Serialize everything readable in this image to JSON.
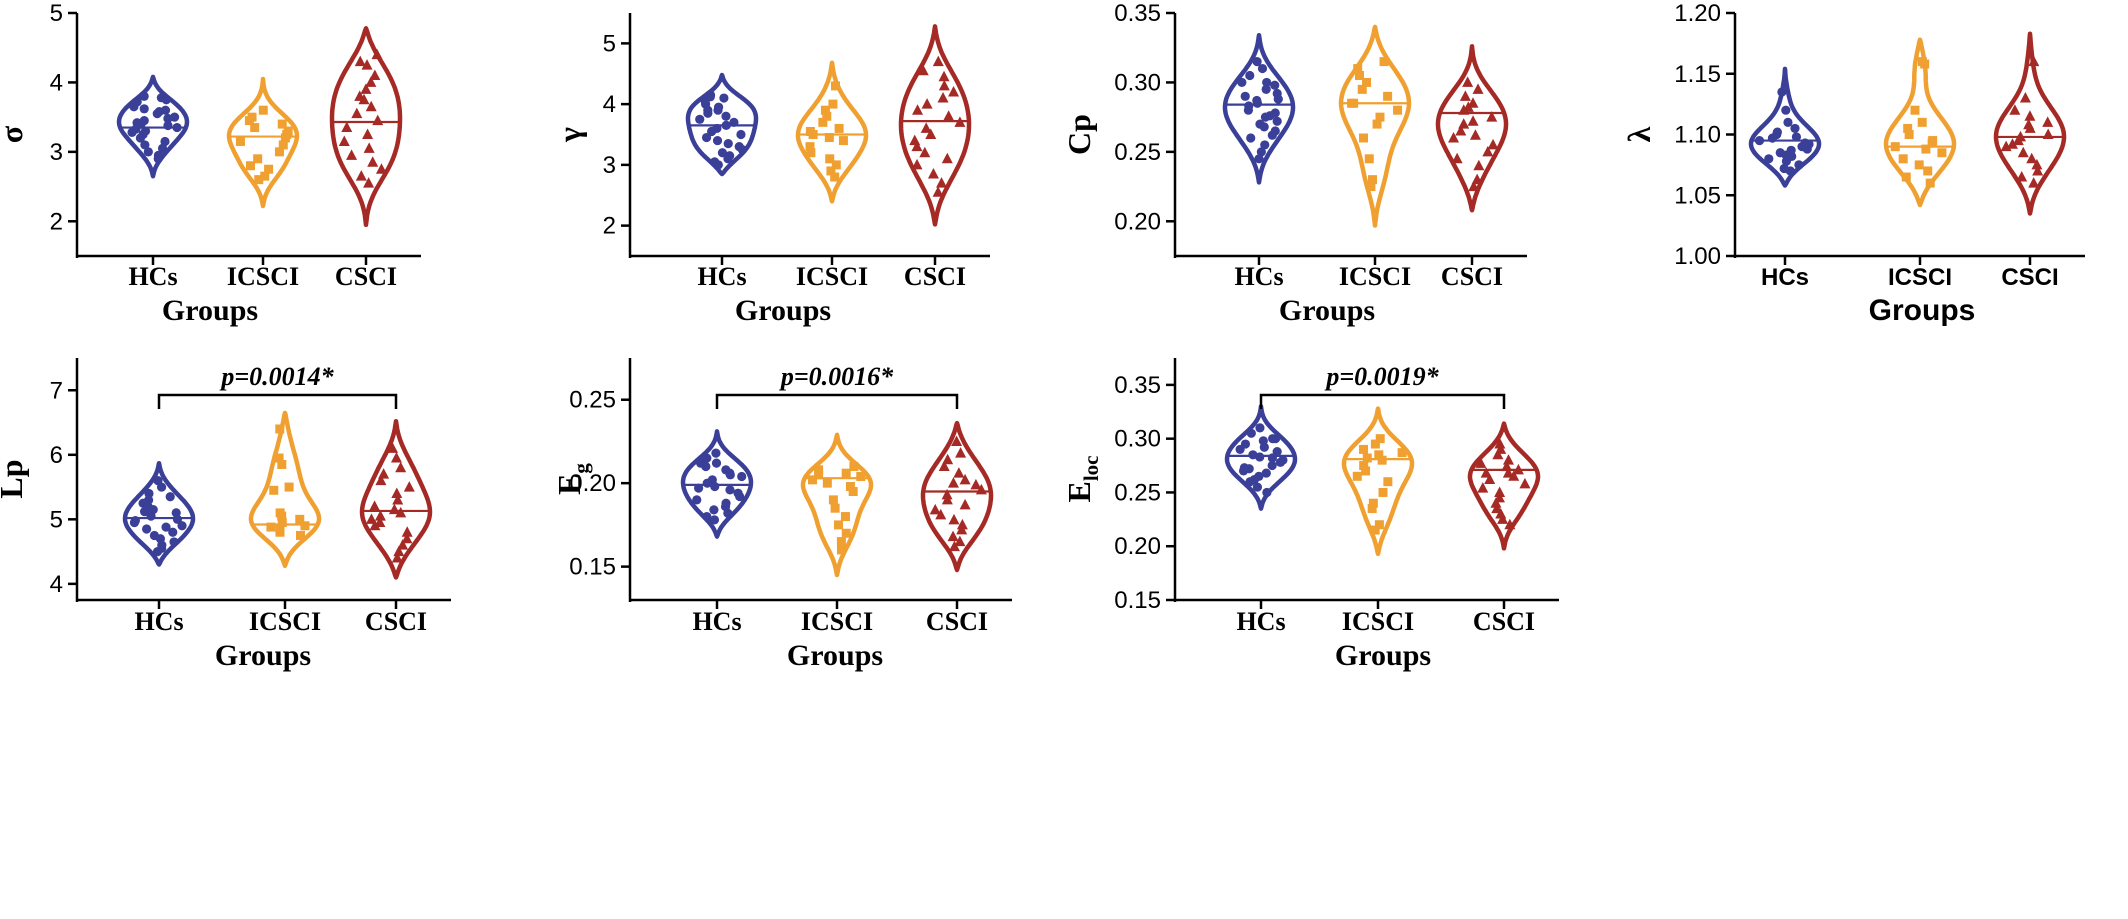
{
  "colors": {
    "HCs": "#3a3f98",
    "ICSCI": "#f0a030",
    "CSCI": "#a52a25"
  },
  "chart_data": [
    {
      "type": "violin",
      "ylabel": "σ",
      "xlabel": "Groups",
      "categories": [
        "HCs",
        "ICSCI",
        "CSCI"
      ],
      "ylim": [
        1.5,
        5
      ],
      "yticks": [
        "2",
        "3",
        "4",
        "5"
      ],
      "series": [
        {
          "name": "HCs",
          "median": 3.35,
          "range": [
            2.65,
            4.08
          ],
          "values": [
            3.8,
            3.78,
            3.75,
            3.72,
            3.7,
            3.65,
            3.6,
            3.55,
            3.5,
            3.48,
            3.45,
            3.42,
            3.4,
            3.38,
            3.35,
            3.33,
            3.3,
            3.28,
            3.25,
            3.2,
            3.15,
            3.1,
            3.05,
            3.0,
            2.95,
            2.9,
            3.62,
            3.58
          ]
        },
        {
          "name": "ICSCI",
          "median": 3.22,
          "range": [
            2.22,
            4.05
          ],
          "values": [
            3.6,
            3.5,
            3.4,
            3.35,
            3.3,
            3.25,
            3.2,
            3.15,
            3.1,
            3.0,
            2.9,
            2.8,
            2.75,
            2.65,
            2.6,
            3.45
          ]
        },
        {
          "name": "CSCI",
          "median": 3.43,
          "range": [
            1.95,
            4.78
          ],
          "values": [
            4.4,
            4.3,
            4.25,
            4.1,
            4.0,
            3.9,
            3.8,
            3.65,
            3.55,
            3.45,
            3.35,
            3.25,
            3.15,
            3.05,
            2.95,
            2.85,
            2.75,
            2.65,
            2.55,
            3.75
          ]
        }
      ]
    },
    {
      "type": "violin",
      "ylabel": "γ",
      "xlabel": "Groups",
      "categories": [
        "HCs",
        "ICSCI",
        "CSCI"
      ],
      "ylim": [
        1.5,
        5.5
      ],
      "yticks": [
        "2",
        "3",
        "4",
        "5"
      ],
      "series": [
        {
          "name": "HCs",
          "median": 3.65,
          "range": [
            2.85,
            4.48
          ],
          "values": [
            4.15,
            4.12,
            4.1,
            4.05,
            4.0,
            3.95,
            3.9,
            3.85,
            3.8,
            3.75,
            3.7,
            3.65,
            3.6,
            3.55,
            3.5,
            3.45,
            3.4,
            3.35,
            3.3,
            3.25,
            3.2,
            3.15,
            3.1,
            3.05,
            3.0,
            3.9
          ]
        },
        {
          "name": "ICSCI",
          "median": 3.5,
          "range": [
            2.4,
            4.68
          ],
          "values": [
            4.3,
            4.0,
            3.9,
            3.8,
            3.7,
            3.6,
            3.5,
            3.45,
            3.4,
            3.3,
            3.2,
            3.1,
            3.0,
            2.9,
            2.8,
            3.55
          ]
        },
        {
          "name": "CSCI",
          "median": 3.72,
          "range": [
            2.02,
            5.28
          ],
          "values": [
            4.7,
            4.55,
            4.45,
            4.3,
            4.2,
            4.1,
            4.0,
            3.9,
            3.8,
            3.7,
            3.6,
            3.5,
            3.4,
            3.3,
            3.2,
            3.1,
            3.0,
            2.85,
            2.7,
            2.55
          ]
        }
      ]
    },
    {
      "type": "violin",
      "ylabel": "Cp",
      "xlabel": "Groups",
      "categories": [
        "HCs",
        "ICSCI",
        "CSCI"
      ],
      "ylim": [
        0.175,
        0.35
      ],
      "yticks": [
        "0.20",
        "0.25",
        "0.30",
        "0.35"
      ],
      "series": [
        {
          "name": "HCs",
          "median": 0.284,
          "range": [
            0.228,
            0.334
          ],
          "values": [
            0.315,
            0.31,
            0.305,
            0.3,
            0.298,
            0.295,
            0.292,
            0.29,
            0.288,
            0.285,
            0.283,
            0.28,
            0.278,
            0.275,
            0.272,
            0.27,
            0.268,
            0.265,
            0.262,
            0.26,
            0.255,
            0.25,
            0.245,
            0.3,
            0.287,
            0.276
          ]
        },
        {
          "name": "ICSCI",
          "median": 0.285,
          "range": [
            0.197,
            0.34
          ],
          "values": [
            0.315,
            0.31,
            0.305,
            0.3,
            0.295,
            0.29,
            0.285,
            0.28,
            0.275,
            0.27,
            0.26,
            0.245,
            0.23,
            0.225,
            0.285
          ]
        },
        {
          "name": "CSCI",
          "median": 0.278,
          "range": [
            0.208,
            0.326
          ],
          "values": [
            0.3,
            0.295,
            0.29,
            0.285,
            0.28,
            0.275,
            0.27,
            0.265,
            0.26,
            0.255,
            0.25,
            0.245,
            0.24,
            0.23,
            0.225,
            0.282,
            0.272,
            0.262
          ]
        }
      ]
    },
    {
      "type": "violin",
      "ylabel": "λ",
      "xlabel": "Groups",
      "categories": [
        "HCs",
        "ICSCI",
        "CSCI"
      ],
      "ylim": [
        1.0,
        1.2
      ],
      "yticks": [
        "1.00",
        "1.05",
        "1.10",
        "1.15",
        "1.20"
      ],
      "series": [
        {
          "name": "HCs",
          "median": 1.095,
          "range": [
            1.058,
            1.154
          ],
          "values": [
            1.135,
            1.12,
            1.11,
            1.105,
            1.1,
            1.098,
            1.095,
            1.093,
            1.09,
            1.088,
            1.085,
            1.082,
            1.08,
            1.078,
            1.075,
            1.072,
            1.07,
            1.102,
            1.097,
            1.092,
            1.087,
            1.083
          ]
        },
        {
          "name": "ICSCI",
          "median": 1.09,
          "range": [
            1.042,
            1.178
          ],
          "values": [
            1.16,
            1.158,
            1.12,
            1.11,
            1.105,
            1.1,
            1.095,
            1.09,
            1.088,
            1.085,
            1.08,
            1.075,
            1.07,
            1.065,
            1.06,
            1.093
          ]
        },
        {
          "name": "CSCI",
          "median": 1.098,
          "range": [
            1.035,
            1.183
          ],
          "values": [
            1.16,
            1.13,
            1.12,
            1.115,
            1.11,
            1.105,
            1.1,
            1.098,
            1.095,
            1.09,
            1.085,
            1.08,
            1.075,
            1.07,
            1.065,
            1.06,
            1.108,
            1.092
          ]
        }
      ]
    },
    {
      "type": "violin",
      "ylabel": "Lp",
      "xlabel": "Groups",
      "categories": [
        "HCs",
        "ICSCI",
        "CSCI"
      ],
      "ylim": [
        3.75,
        7.5
      ],
      "yticks": [
        "4",
        "5",
        "6",
        "7"
      ],
      "annotation": "p=0.0014*",
      "bracket": [
        "HCs",
        "CSCI"
      ],
      "series": [
        {
          "name": "HCs",
          "median": 5.02,
          "range": [
            4.3,
            5.87
          ],
          "values": [
            5.6,
            5.5,
            5.4,
            5.35,
            5.3,
            5.25,
            5.2,
            5.15,
            5.1,
            5.05,
            5.0,
            4.95,
            4.9,
            4.85,
            4.8,
            4.75,
            4.7,
            4.65,
            4.6,
            4.55,
            4.5,
            5.12,
            4.98,
            4.88
          ]
        },
        {
          "name": "ICSCI",
          "median": 4.92,
          "range": [
            4.28,
            6.65
          ],
          "values": [
            6.4,
            5.95,
            5.85,
            5.5,
            5.45,
            5.1,
            5.05,
            5.0,
            4.95,
            4.9,
            4.85,
            4.8,
            4.75,
            4.88
          ]
        },
        {
          "name": "CSCI",
          "median": 5.13,
          "range": [
            4.1,
            6.52
          ],
          "values": [
            6.1,
            5.95,
            5.8,
            5.7,
            5.6,
            5.5,
            5.4,
            5.3,
            5.2,
            5.15,
            5.1,
            5.0,
            4.95,
            4.9,
            4.8,
            4.7,
            4.6,
            4.5,
            4.4,
            5.05
          ]
        }
      ]
    },
    {
      "type": "violin",
      "ylabel": "Eg",
      "ylabel_main": "E",
      "ylabel_sub": "g",
      "xlabel": "Groups",
      "categories": [
        "HCs",
        "ICSCI",
        "CSCI"
      ],
      "ylim": [
        0.13,
        0.275
      ],
      "yticks": [
        "0.15",
        "0.20",
        "0.25"
      ],
      "annotation": "p=0.0016*",
      "bracket": [
        "HCs",
        "CSCI"
      ],
      "series": [
        {
          "name": "HCs",
          "median": 0.199,
          "range": [
            0.168,
            0.231
          ],
          "values": [
            0.218,
            0.215,
            0.212,
            0.21,
            0.208,
            0.206,
            0.204,
            0.202,
            0.2,
            0.198,
            0.196,
            0.194,
            0.192,
            0.19,
            0.188,
            0.186,
            0.184,
            0.182,
            0.18,
            0.178,
            0.212,
            0.205,
            0.197
          ]
        },
        {
          "name": "ICSCI",
          "median": 0.203,
          "range": [
            0.145,
            0.229
          ],
          "values": [
            0.21,
            0.208,
            0.206,
            0.204,
            0.202,
            0.2,
            0.198,
            0.195,
            0.19,
            0.185,
            0.18,
            0.175,
            0.17,
            0.165,
            0.16,
            0.205
          ]
        },
        {
          "name": "CSCI",
          "median": 0.195,
          "range": [
            0.148,
            0.236
          ],
          "values": [
            0.225,
            0.218,
            0.214,
            0.21,
            0.206,
            0.202,
            0.199,
            0.196,
            0.193,
            0.19,
            0.187,
            0.184,
            0.181,
            0.178,
            0.175,
            0.172,
            0.168,
            0.165,
            0.162,
            0.2
          ]
        }
      ]
    },
    {
      "type": "violin",
      "ylabel": "Eloc",
      "ylabel_main": "E",
      "ylabel_sub": "loc",
      "xlabel": "Groups",
      "categories": [
        "HCs",
        "ICSCI",
        "CSCI"
      ],
      "ylim": [
        0.15,
        0.375
      ],
      "yticks": [
        "0.15",
        "0.20",
        "0.25",
        "0.30",
        "0.35"
      ],
      "annotation": "p=0.0019*",
      "bracket": [
        "HCs",
        "CSCI"
      ],
      "series": [
        {
          "name": "HCs",
          "median": 0.284,
          "range": [
            0.235,
            0.33
          ],
          "values": [
            0.31,
            0.305,
            0.3,
            0.298,
            0.295,
            0.292,
            0.29,
            0.288,
            0.285,
            0.282,
            0.28,
            0.278,
            0.275,
            0.272,
            0.27,
            0.268,
            0.265,
            0.262,
            0.26,
            0.255,
            0.25,
            0.3,
            0.283,
            0.273
          ]
        },
        {
          "name": "ICSCI",
          "median": 0.281,
          "range": [
            0.193,
            0.328
          ],
          "values": [
            0.3,
            0.295,
            0.29,
            0.285,
            0.282,
            0.28,
            0.275,
            0.27,
            0.265,
            0.26,
            0.25,
            0.24,
            0.235,
            0.22,
            0.215,
            0.287
          ]
        },
        {
          "name": "CSCI",
          "median": 0.271,
          "range": [
            0.198,
            0.314
          ],
          "values": [
            0.295,
            0.29,
            0.285,
            0.28,
            0.277,
            0.274,
            0.271,
            0.268,
            0.265,
            0.262,
            0.258,
            0.254,
            0.25,
            0.245,
            0.24,
            0.235,
            0.23,
            0.225,
            0.22,
            0.268
          ]
        }
      ]
    }
  ]
}
